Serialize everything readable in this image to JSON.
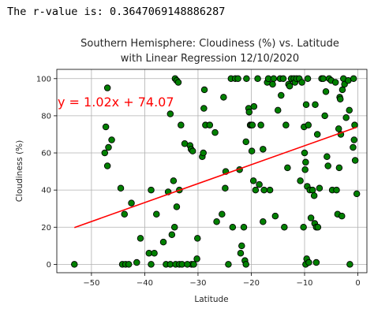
{
  "output": {
    "rvalue_text": "The r-value is: 0.3647069148886287"
  },
  "chart_data": {
    "type": "scatter",
    "title": "Southern Hemisphere: Cloudiness (%) vs. Latitude",
    "subtitle": "with Linear Regression 12/10/2020",
    "xlabel": "Latitude",
    "ylabel": "Cloudiness (%)",
    "xlim": [
      -56.5,
      1.7
    ],
    "ylim": [
      -4.5,
      105
    ],
    "xticks": [
      -50,
      -40,
      -30,
      -20,
      -10,
      0
    ],
    "yticks": [
      0,
      20,
      40,
      60,
      80,
      100
    ],
    "xtick_labels": [
      "−50",
      "−40",
      "−30",
      "−20",
      "−10",
      "0"
    ],
    "ytick_labels": [
      "0",
      "20",
      "40",
      "60",
      "80",
      "100"
    ],
    "grid": true,
    "marker_color": "#008000",
    "marker_edge": "#000000",
    "line_color": "#ff0000",
    "regression": {
      "slope": 1.02,
      "intercept": 74.07,
      "x_range": [
        -53.2,
        -0.2
      ]
    },
    "equation_text": "y = 1.02x + 74.07",
    "points": [
      [
        -53.2,
        0
      ],
      [
        -47.0,
        95
      ],
      [
        -47.5,
        60
      ],
      [
        -47.3,
        74
      ],
      [
        -46.8,
        63
      ],
      [
        -47.0,
        53
      ],
      [
        -46.2,
        67
      ],
      [
        -44.5,
        41
      ],
      [
        -43.8,
        27
      ],
      [
        -44.2,
        0
      ],
      [
        -43.6,
        0
      ],
      [
        -43.0,
        0
      ],
      [
        -42.5,
        33
      ],
      [
        -41.5,
        1
      ],
      [
        -40.8,
        14
      ],
      [
        -39.2,
        6
      ],
      [
        -38.8,
        40
      ],
      [
        -38.2,
        6
      ],
      [
        -38.8,
        0
      ],
      [
        -37.8,
        27
      ],
      [
        -36.5,
        12
      ],
      [
        -36.0,
        0
      ],
      [
        -35.2,
        0
      ],
      [
        -35.6,
        39
      ],
      [
        -35.2,
        81
      ],
      [
        -34.6,
        45
      ],
      [
        -34.3,
        100
      ],
      [
        -34.0,
        99
      ],
      [
        -33.7,
        98
      ],
      [
        -34.4,
        20
      ],
      [
        -34.9,
        16
      ],
      [
        -34.0,
        31
      ],
      [
        -34.2,
        0
      ],
      [
        -33.5,
        0
      ],
      [
        -33.0,
        0
      ],
      [
        -33.5,
        40
      ],
      [
        -33.2,
        75
      ],
      [
        -32.5,
        65
      ],
      [
        -31.5,
        64
      ],
      [
        -31.3,
        62
      ],
      [
        -31.0,
        61
      ],
      [
        -31.2,
        0
      ],
      [
        -32.0,
        0
      ],
      [
        -30.8,
        0
      ],
      [
        -30.2,
        3
      ],
      [
        -30.1,
        14
      ],
      [
        -29.2,
        58
      ],
      [
        -29.0,
        60
      ],
      [
        -28.9,
        84
      ],
      [
        -28.8,
        94
      ],
      [
        -28.6,
        75
      ],
      [
        -27.8,
        75
      ],
      [
        -26.8,
        71
      ],
      [
        -26.5,
        23
      ],
      [
        -25.5,
        27
      ],
      [
        -25.2,
        90
      ],
      [
        -24.9,
        41
      ],
      [
        -24.8,
        50
      ],
      [
        -24.3,
        0
      ],
      [
        -23.5,
        20
      ],
      [
        -23.8,
        100
      ],
      [
        -23.0,
        100
      ],
      [
        -22.5,
        100
      ],
      [
        -22.2,
        51
      ],
      [
        -22.0,
        6
      ],
      [
        -21.8,
        10
      ],
      [
        -21.4,
        20
      ],
      [
        -21.2,
        2
      ],
      [
        -21.0,
        0
      ],
      [
        -20.9,
        100
      ],
      [
        -21.0,
        66
      ],
      [
        -20.5,
        84
      ],
      [
        -20.4,
        82
      ],
      [
        -20.2,
        75
      ],
      [
        -20.0,
        75
      ],
      [
        -19.8,
        75
      ],
      [
        -19.9,
        61
      ],
      [
        -19.5,
        85
      ],
      [
        -19.6,
        45
      ],
      [
        -19.2,
        40
      ],
      [
        -18.8,
        100
      ],
      [
        -18.5,
        43
      ],
      [
        -18.2,
        75
      ],
      [
        -17.8,
        62
      ],
      [
        -17.6,
        40
      ],
      [
        -17.8,
        23
      ],
      [
        -17.0,
        98
      ],
      [
        -16.8,
        100
      ],
      [
        -16.5,
        40
      ],
      [
        -16.0,
        97
      ],
      [
        -15.8,
        100
      ],
      [
        -15.5,
        26
      ],
      [
        -15.0,
        83
      ],
      [
        -14.6,
        100
      ],
      [
        -14.4,
        91
      ],
      [
        -14.0,
        100
      ],
      [
        -13.8,
        20
      ],
      [
        -13.5,
        75
      ],
      [
        -13.2,
        52
      ],
      [
        -13.0,
        97
      ],
      [
        -12.8,
        96
      ],
      [
        -12.5,
        100
      ],
      [
        -12.0,
        100
      ],
      [
        -11.8,
        98
      ],
      [
        -11.5,
        100
      ],
      [
        -11.0,
        100
      ],
      [
        -10.8,
        45
      ],
      [
        -10.5,
        98
      ],
      [
        -10.1,
        74
      ],
      [
        -10.0,
        60
      ],
      [
        -10.2,
        20
      ],
      [
        -9.8,
        55
      ],
      [
        -9.9,
        51
      ],
      [
        -9.7,
        86
      ],
      [
        -9.8,
        0
      ],
      [
        -9.6,
        3
      ],
      [
        -9.5,
        42
      ],
      [
        -9.4,
        100
      ],
      [
        -9.2,
        1
      ],
      [
        -9.0,
        40
      ],
      [
        -9.3,
        75
      ],
      [
        -8.8,
        25
      ],
      [
        -8.5,
        40
      ],
      [
        -8.2,
        37
      ],
      [
        -8.1,
        22
      ],
      [
        -8.0,
        86
      ],
      [
        -7.8,
        20
      ],
      [
        -7.6,
        70
      ],
      [
        -7.5,
        20
      ],
      [
        -7.8,
        1
      ],
      [
        -7.2,
        41
      ],
      [
        -6.8,
        100
      ],
      [
        -6.5,
        100
      ],
      [
        -6.2,
        80
      ],
      [
        -6.0,
        93
      ],
      [
        -5.8,
        58
      ],
      [
        -5.6,
        53
      ],
      [
        -5.4,
        100
      ],
      [
        -5.0,
        99
      ],
      [
        -4.8,
        40
      ],
      [
        -4.2,
        98
      ],
      [
        -4.0,
        40
      ],
      [
        -3.8,
        27
      ],
      [
        -3.6,
        73
      ],
      [
        -3.4,
        90
      ],
      [
        -3.3,
        89
      ],
      [
        -3.5,
        52
      ],
      [
        -3.2,
        70
      ],
      [
        -2.9,
        94
      ],
      [
        -2.7,
        100
      ],
      [
        -2.5,
        97
      ],
      [
        -3.0,
        26
      ],
      [
        -2.2,
        79
      ],
      [
        -1.8,
        99
      ],
      [
        -1.5,
        0
      ],
      [
        -1.6,
        83
      ],
      [
        -0.6,
        75
      ],
      [
        -0.8,
        100
      ],
      [
        -0.9,
        63
      ],
      [
        -0.7,
        67
      ],
      [
        -0.5,
        56
      ],
      [
        -0.2,
        38
      ]
    ]
  }
}
